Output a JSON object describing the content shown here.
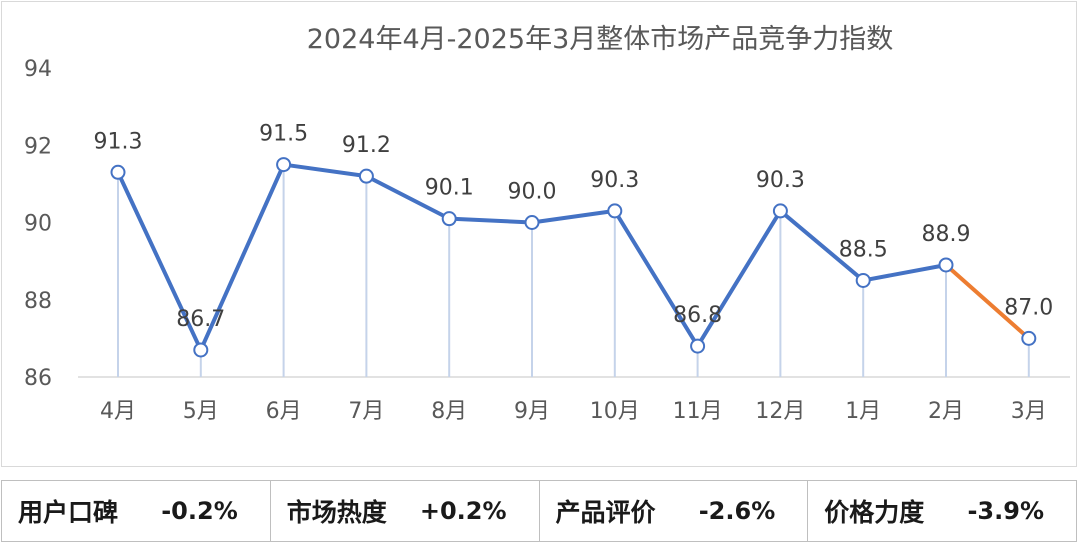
{
  "chart_data": {
    "type": "line",
    "title": "2024年4月-2025年3月整体市场产品竞争力指数",
    "categories": [
      "4月",
      "5月",
      "6月",
      "7月",
      "8月",
      "9月",
      "10月",
      "11月",
      "12月",
      "1月",
      "2月",
      "3月"
    ],
    "series": [
      {
        "values": [
          91.3,
          86.7,
          91.5,
          91.2,
          90.1,
          90.0,
          90.3,
          86.8,
          90.3,
          88.5,
          88.9,
          87.0
        ]
      }
    ],
    "data_labels": [
      "91.3",
      "86.7",
      "91.5",
      "91.2",
      "90.1",
      "90.0",
      "90.3",
      "86.8",
      "90.3",
      "88.5",
      "88.9",
      "87.0"
    ],
    "yticks": [
      "94",
      "92",
      "90",
      "88",
      "86"
    ],
    "ylim": [
      86,
      94
    ],
    "grid": false,
    "drop_lines": true,
    "colors": {
      "line": "#4472c4",
      "last_segment": "#ed7d31",
      "marker_fill": "#ffffff",
      "drop_line": "#c5d3ea"
    }
  },
  "metrics": [
    {
      "label": "用户口碑",
      "value": "-0.2%"
    },
    {
      "label": "市场热度",
      "value": "+0.2%"
    },
    {
      "label": "产品评价",
      "value": "-2.6%"
    },
    {
      "label": "价格力度",
      "value": "-3.9%"
    }
  ]
}
